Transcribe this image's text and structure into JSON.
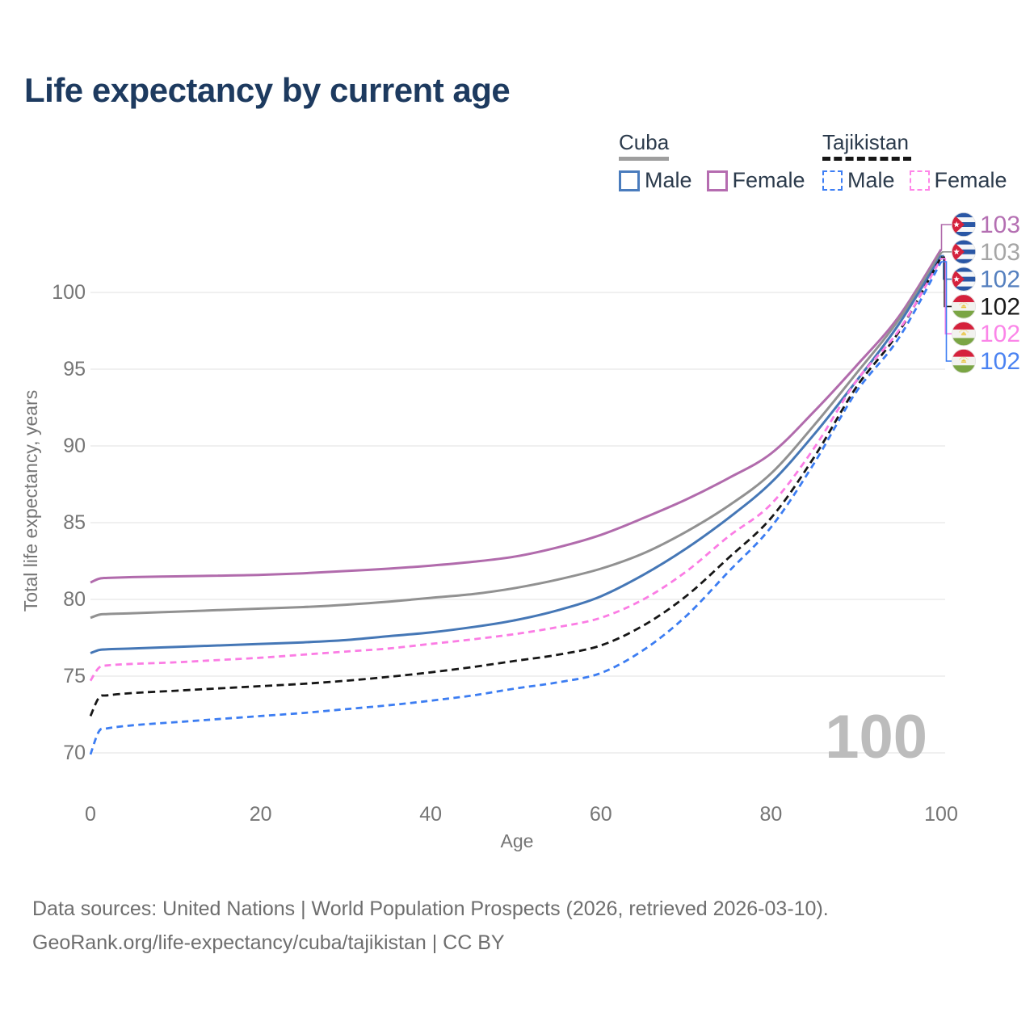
{
  "header": {
    "title": "Life expectancy by current age"
  },
  "legend": {
    "groups": [
      {
        "name": "Cuba",
        "line_style": "solid",
        "underline_color": "#9e9e9e",
        "items": [
          {
            "label": "Male",
            "color": "#4a7cbd"
          },
          {
            "label": "Female",
            "color": "#b56cb0"
          }
        ]
      },
      {
        "name": "Tajikistan",
        "line_style": "dashed",
        "underline_color": "#161616",
        "items": [
          {
            "label": "Male",
            "color": "#3d7ef5"
          },
          {
            "label": "Female",
            "color": "#ff85e8"
          }
        ]
      }
    ]
  },
  "chart_data": {
    "type": "line",
    "title": "Life expectancy by current age",
    "xlabel": "Age",
    "ylabel": "Total life expectancy, years",
    "xlim": [
      0,
      100
    ],
    "ylim": [
      68,
      104
    ],
    "xticks": [
      0,
      20,
      40,
      60,
      80,
      100
    ],
    "yticks": [
      70,
      75,
      80,
      85,
      90,
      95,
      100
    ],
    "grid": "horizontal-only",
    "legend_position": "top-right",
    "watermark": "100",
    "x": [
      0,
      1,
      2,
      5,
      10,
      15,
      20,
      25,
      30,
      35,
      40,
      45,
      50,
      55,
      60,
      65,
      70,
      75,
      80,
      85,
      90,
      95,
      100
    ],
    "series": [
      {
        "name": "Cuba Female",
        "country": "Cuba",
        "sex": "Female",
        "color": "#b16bac",
        "label_color": "#b46fb2",
        "dash": "solid",
        "flag": "cuba",
        "end_label": "103",
        "values": [
          81.1,
          81.35,
          81.4,
          81.45,
          81.5,
          81.55,
          81.6,
          81.7,
          81.85,
          82.0,
          82.2,
          82.45,
          82.8,
          83.4,
          84.2,
          85.3,
          86.5,
          87.9,
          89.5,
          92.2,
          95.2,
          98.4,
          102.8
        ]
      },
      {
        "name": "Cuba Total",
        "country": "Cuba",
        "sex": "Both",
        "color": "#919191",
        "label_color": "#a6a6a6",
        "dash": "solid",
        "flag": "cuba",
        "end_label": "103",
        "values": [
          78.8,
          79.0,
          79.05,
          79.1,
          79.2,
          79.3,
          79.4,
          79.5,
          79.65,
          79.85,
          80.1,
          80.35,
          80.75,
          81.3,
          82.0,
          83.0,
          84.4,
          86.1,
          88.2,
          91.3,
          94.7,
          98.2,
          102.6
        ]
      },
      {
        "name": "Cuba Male",
        "country": "Cuba",
        "sex": "Male",
        "color": "#4577b6",
        "label_color": "#5580bf",
        "dash": "solid",
        "flag": "cuba",
        "end_label": "102",
        "values": [
          76.5,
          76.7,
          76.75,
          76.8,
          76.9,
          77.0,
          77.1,
          77.2,
          77.35,
          77.6,
          77.85,
          78.2,
          78.65,
          79.3,
          80.2,
          81.6,
          83.3,
          85.3,
          87.6,
          90.7,
          94.2,
          97.9,
          102.4
        ]
      },
      {
        "name": "Tajikistan Total",
        "country": "Tajikistan",
        "sex": "Both",
        "color": "#161616",
        "label_color": "#1a1a1a",
        "dash": "9 5.5",
        "flag": "tajikistan",
        "end_label": "102",
        "values": [
          72.4,
          73.6,
          73.75,
          73.9,
          74.05,
          74.2,
          74.35,
          74.5,
          74.7,
          74.95,
          75.25,
          75.6,
          76.0,
          76.4,
          77.0,
          78.3,
          80.2,
          82.7,
          85.3,
          89.2,
          93.8,
          97.4,
          102.3
        ]
      },
      {
        "name": "Tajikistan Female",
        "country": "Tajikistan",
        "sex": "Female",
        "color": "#fb7ce4",
        "label_color": "#fb85e8",
        "dash": "8 5.5",
        "flag": "tajikistan",
        "end_label": "102",
        "values": [
          74.7,
          75.55,
          75.7,
          75.8,
          75.9,
          76.05,
          76.2,
          76.4,
          76.6,
          76.8,
          77.1,
          77.4,
          77.75,
          78.2,
          78.8,
          80.0,
          81.8,
          84.1,
          86.2,
          89.8,
          94.2,
          97.5,
          102.2
        ]
      },
      {
        "name": "Tajikistan Male",
        "country": "Tajikistan",
        "sex": "Male",
        "color": "#3c7df2",
        "label_color": "#4b83f2",
        "dash": "8 5.5",
        "flag": "tajikistan",
        "end_label": "102",
        "values": [
          69.9,
          71.4,
          71.6,
          71.8,
          72.0,
          72.2,
          72.4,
          72.6,
          72.85,
          73.1,
          73.4,
          73.75,
          74.2,
          74.6,
          75.2,
          76.7,
          78.9,
          81.8,
          84.7,
          88.8,
          93.5,
          97.0,
          102.0
        ]
      }
    ]
  },
  "footer": {
    "lines": [
      "Data sources: United Nations | World Population Prospects (2026, retrieved 2026-03-10).",
      "GeoRank.org/life-expectancy/cuba/tajikistan | CC BY"
    ]
  }
}
